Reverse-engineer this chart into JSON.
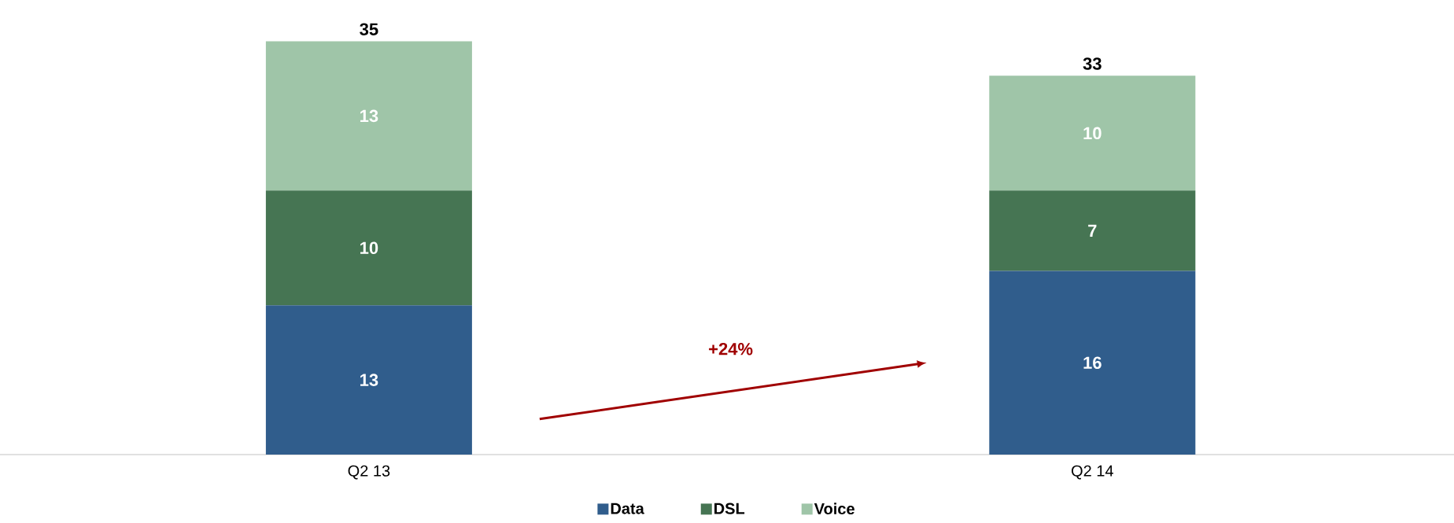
{
  "chart_data": {
    "type": "bar",
    "stacked": true,
    "categories": [
      "Q2 13",
      "Q2 14"
    ],
    "series": [
      {
        "name": "Data",
        "color": "#305d8c",
        "values": [
          13,
          16
        ]
      },
      {
        "name": "DSL",
        "color": "#467553",
        "values": [
          10,
          7
        ]
      },
      {
        "name": "Voice",
        "color": "#9fc5a8",
        "values": [
          13,
          10
        ]
      }
    ],
    "data_labels": true,
    "totals": [
      "35",
      "33"
    ],
    "legend": "bottom",
    "annotations": [
      "+24%"
    ]
  }
}
